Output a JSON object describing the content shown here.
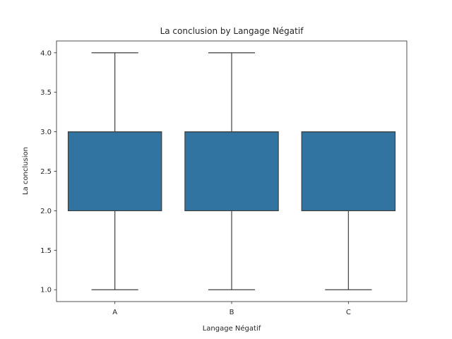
{
  "chart_data": {
    "type": "box",
    "title": "La conclusion by Langage Négatif",
    "xlabel": "Langage Négatif",
    "ylabel": "La conclusion",
    "categories": [
      "A",
      "B",
      "C"
    ],
    "boxes": [
      {
        "category": "A",
        "whisker_low": 1.0,
        "q1": 2.0,
        "median": 3.0,
        "q3": 3.0,
        "whisker_high": 4.0
      },
      {
        "category": "B",
        "whisker_low": 1.0,
        "q1": 2.0,
        "median": 3.0,
        "q3": 3.0,
        "whisker_high": 4.0
      },
      {
        "category": "C",
        "whisker_low": 1.0,
        "q1": 2.0,
        "median": 3.0,
        "q3": 3.0,
        "whisker_high": 3.0
      }
    ],
    "ylim": [
      0.85,
      4.15
    ],
    "yticks": [
      "1.0",
      "1.5",
      "2.0",
      "2.5",
      "3.0",
      "3.5",
      "4.0"
    ],
    "grid": false,
    "box_color": "#3274a1",
    "line_color": "#3f3f3f"
  }
}
